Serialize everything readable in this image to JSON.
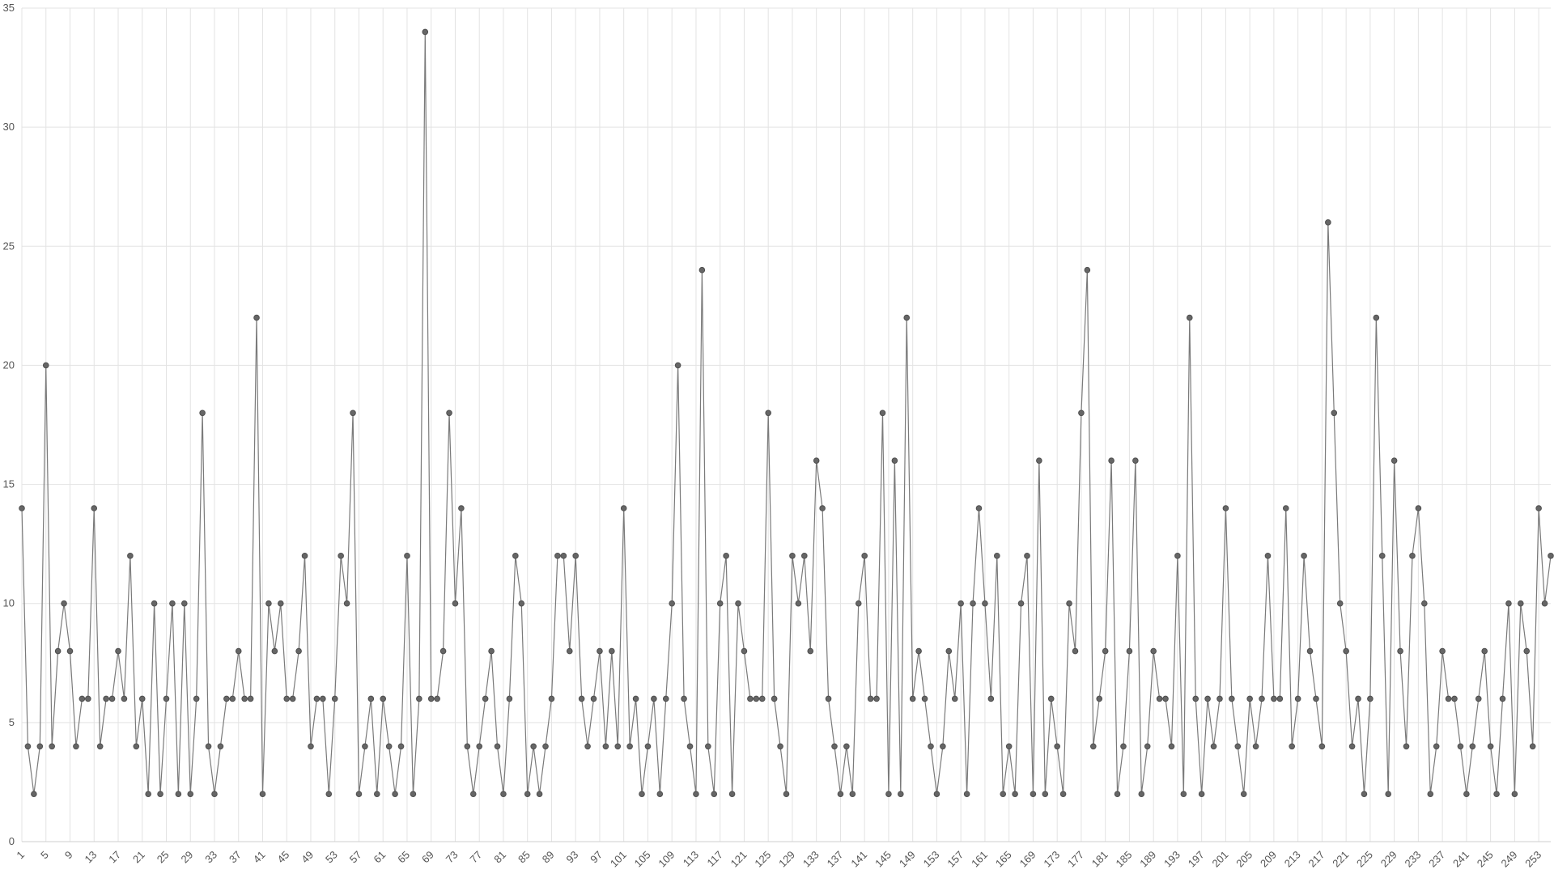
{
  "chart_data": {
    "type": "line",
    "title": "",
    "xlabel": "",
    "ylabel": "",
    "x_start": 1,
    "x_end": 256,
    "x_tick_step": 4,
    "ylim": [
      0,
      35
    ],
    "y_ticks": [
      0,
      5,
      10,
      15,
      20,
      25,
      30,
      35
    ],
    "grid": true,
    "legend": "none",
    "series": [
      {
        "color": "#666666",
        "values": [
          14,
          4,
          2,
          4,
          20,
          4,
          8,
          10,
          8,
          4,
          6,
          6,
          14,
          4,
          6,
          6,
          8,
          6,
          12,
          4,
          6,
          2,
          10,
          2,
          6,
          10,
          2,
          10,
          2,
          6,
          18,
          4,
          2,
          4,
          6,
          6,
          8,
          6,
          6,
          22,
          2,
          10,
          8,
          10,
          6,
          6,
          8,
          12,
          4,
          6,
          6,
          2,
          6,
          12,
          10,
          18,
          2,
          4,
          6,
          2,
          6,
          4,
          2,
          4,
          12,
          2,
          6,
          34,
          6,
          6,
          8,
          18,
          10,
          14,
          4,
          2,
          4,
          6,
          8,
          4,
          2,
          6,
          12,
          10,
          2,
          4,
          2,
          4,
          6,
          12,
          12,
          8,
          12,
          6,
          4,
          6,
          8,
          4,
          8,
          4,
          14,
          4,
          6,
          2,
          4,
          6,
          2,
          6,
          10,
          20,
          6,
          4,
          2,
          24,
          4,
          2,
          10,
          12,
          2,
          10,
          8,
          6,
          6,
          6,
          18,
          6,
          4,
          2,
          12,
          10,
          12,
          8,
          16,
          14,
          6,
          4,
          2,
          4,
          2,
          10,
          12,
          6,
          6,
          18,
          2,
          16,
          2,
          22,
          6,
          8,
          6,
          4,
          2,
          4,
          8,
          6,
          10,
          2,
          10,
          14,
          10,
          6,
          12,
          2,
          4,
          2,
          10,
          12,
          2,
          16,
          2,
          6,
          4,
          2,
          10,
          8,
          18,
          24,
          4,
          6,
          8,
          16,
          2,
          4,
          8,
          16,
          2,
          4,
          8,
          6,
          6,
          4,
          12,
          2,
          22,
          6,
          2,
          6,
          4,
          6,
          14,
          6,
          4,
          2,
          6,
          4,
          6,
          12,
          6,
          6,
          14,
          4,
          6,
          12,
          8,
          6,
          4,
          26,
          18,
          10,
          8,
          4,
          6,
          2,
          6,
          22,
          12,
          2,
          16,
          8,
          4,
          12,
          14,
          10,
          2,
          4,
          8,
          6,
          6,
          4,
          2,
          4,
          6,
          8,
          4,
          2,
          6,
          10,
          2,
          10,
          8,
          4,
          14,
          10,
          12
        ]
      }
    ]
  }
}
